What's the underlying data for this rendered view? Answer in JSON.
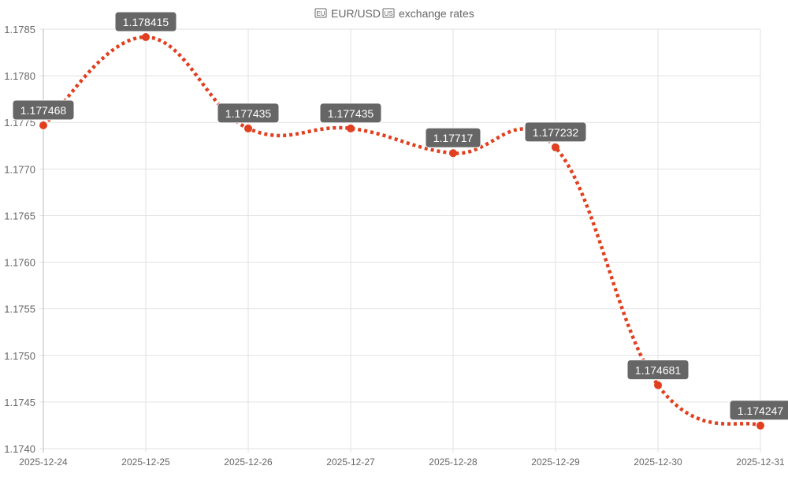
{
  "chart_data": {
    "type": "line",
    "title": "EUR/USD exchange rates",
    "title_parts": {
      "flag_left": "EU",
      "pair": "EUR/USD",
      "flag_right": "US",
      "suffix": "exchange rates"
    },
    "categories": [
      "2025-12-24",
      "2025-12-25",
      "2025-12-26",
      "2025-12-27",
      "2025-12-28",
      "2025-12-29",
      "2025-12-30",
      "2025-12-31"
    ],
    "series": [
      {
        "name": "EUR/USD",
        "values": [
          1.177468,
          1.178415,
          1.177435,
          1.177435,
          1.17717,
          1.177232,
          1.174681,
          1.174247
        ],
        "labels": [
          "1.177468",
          "1.178415",
          "1.177435",
          "1.177435",
          "1.17717",
          "1.177232",
          "1.174681",
          "1.174247"
        ],
        "color": "#e0401f"
      }
    ],
    "ylim": [
      1.174,
      1.1785
    ],
    "yticks": [
      "1.1740",
      "1.1745",
      "1.1750",
      "1.1755",
      "1.1760",
      "1.1765",
      "1.1770",
      "1.1775",
      "1.1780",
      "1.1785"
    ],
    "xlabel": "",
    "ylabel": "",
    "grid": true,
    "legend": "none"
  }
}
